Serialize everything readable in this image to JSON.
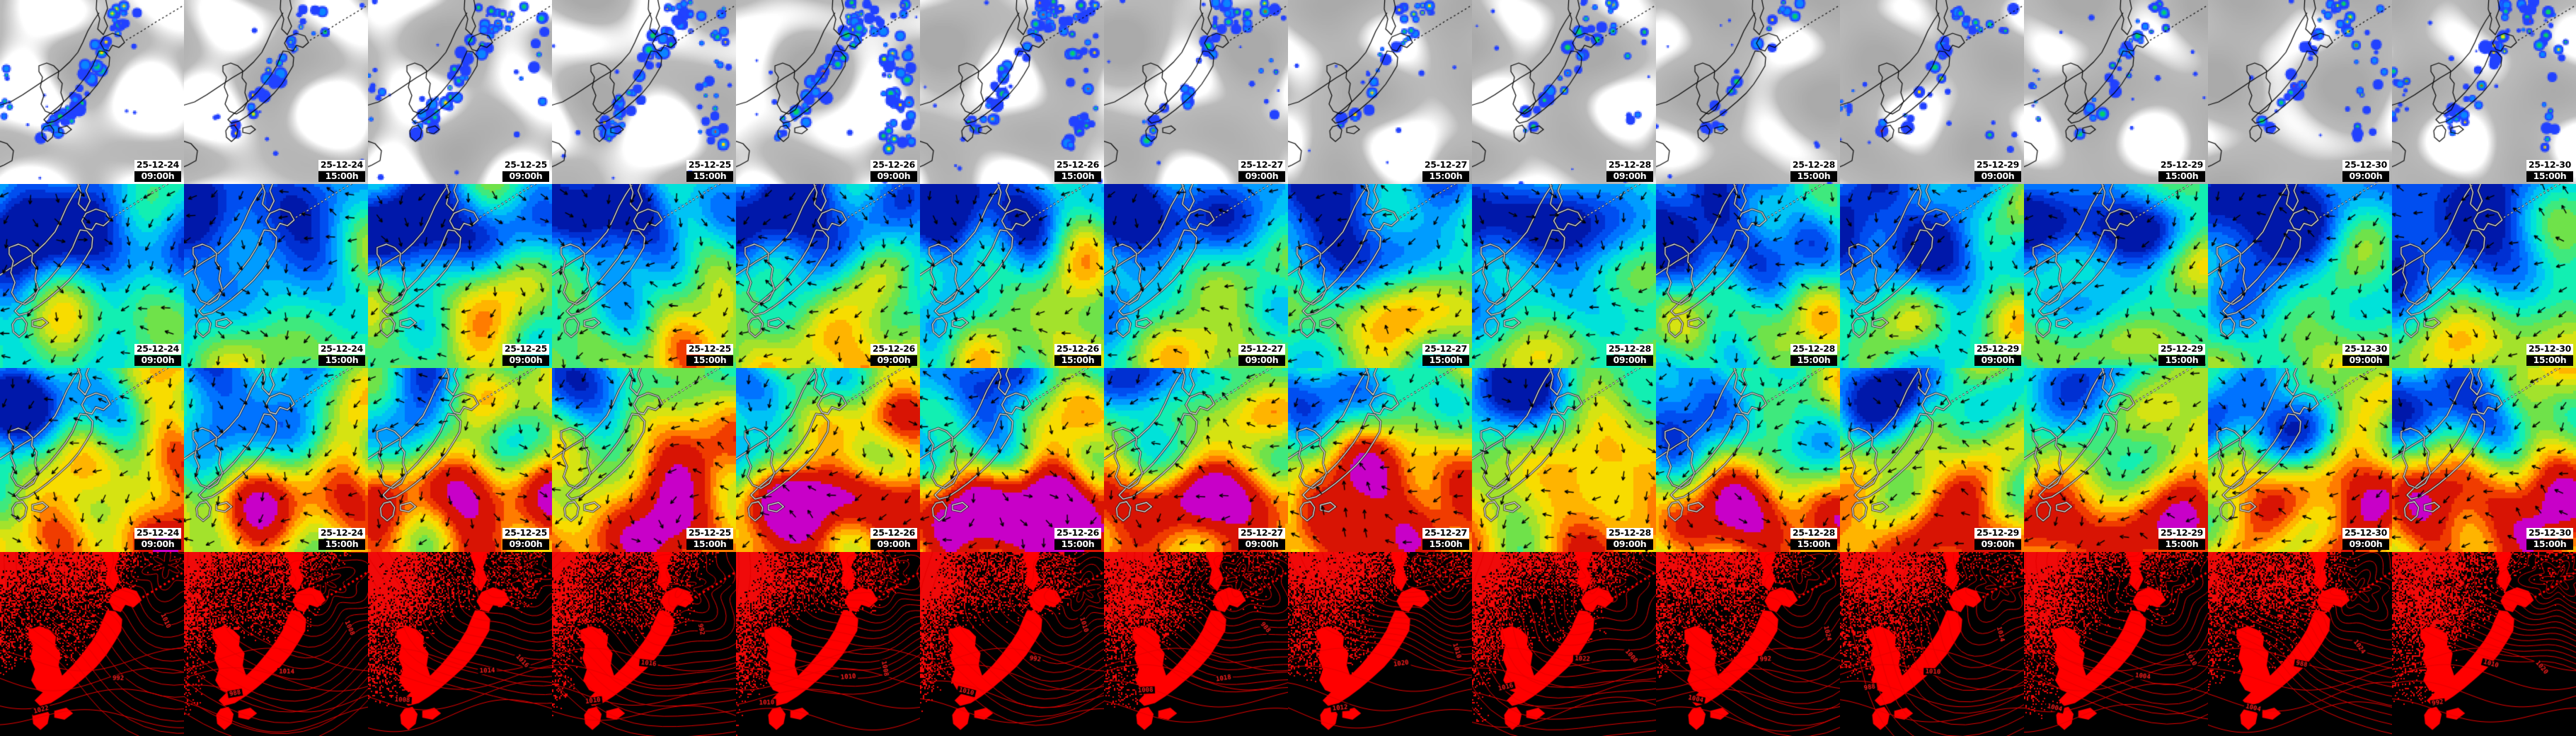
{
  "grid": {
    "rows": [
      {
        "id": "clouds-precipitation"
      },
      {
        "id": "wind-field-low"
      },
      {
        "id": "wind-field-high"
      },
      {
        "id": "sea-level-pressure"
      }
    ],
    "columns": [
      {
        "date": "25-12-24",
        "time": "09:00h"
      },
      {
        "date": "25-12-24",
        "time": "15:00h"
      },
      {
        "date": "25-12-25",
        "time": "09:00h"
      },
      {
        "date": "25-12-25",
        "time": "15:00h"
      },
      {
        "date": "25-12-26",
        "time": "09:00h"
      },
      {
        "date": "25-12-26",
        "time": "15:00h"
      },
      {
        "date": "25-12-27",
        "time": "09:00h"
      },
      {
        "date": "25-12-27",
        "time": "15:00h"
      },
      {
        "date": "25-12-28",
        "time": "09:00h"
      },
      {
        "date": "25-12-28",
        "time": "15:00h"
      },
      {
        "date": "25-12-29",
        "time": "09:00h"
      },
      {
        "date": "25-12-29",
        "time": "15:00h"
      },
      {
        "date": "25-12-30",
        "time": "09:00h"
      },
      {
        "date": "25-12-30",
        "time": "15:00h"
      }
    ]
  },
  "pressure": {
    "contour_labels": [
      "988",
      "992",
      "1004",
      "1008",
      "1010",
      "1012",
      "1014",
      "1016",
      "1018",
      "1020",
      "1022",
      "1024"
    ]
  },
  "colors": {
    "satellite_bg": "#b4b4b4",
    "cloud_white": "#ffffff",
    "land_outline": "#000000",
    "coast_light": "#fafafa",
    "precip_scale": [
      "#2141ff",
      "#0a85ff",
      "#06d06a",
      "#ffe300",
      "#ff2d00"
    ],
    "wind_scale": [
      "#0018aa",
      "#0030d2",
      "#004ef0",
      "#0073ff",
      "#009cff",
      "#00c3f5",
      "#00e2da",
      "#12efb2",
      "#3fe97d",
      "#6fe24a",
      "#a3e22c",
      "#d6e312",
      "#f8dc00",
      "#ffb400",
      "#ff7c00",
      "#f03c00",
      "#d81404"
    ],
    "wind_extreme": "#c800c8",
    "pressure_line": "#e60000",
    "pressure_land": "#ff0000",
    "stamp_date_bg": "#ffffff",
    "stamp_date_fg": "#000000",
    "stamp_time_bg": "#000000",
    "stamp_time_fg": "#ffffff"
  }
}
